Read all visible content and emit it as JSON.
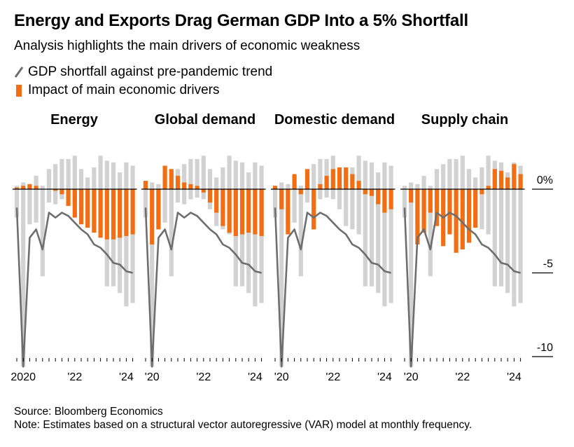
{
  "title": "Energy and Exports Drag German GDP Into a 5% Shortfall",
  "subtitle": "Analysis highlights the main drivers of economic weakness",
  "legend": {
    "line_label": "GDP shortfall against pre-pandemic trend",
    "bar_label": "Impact of main economic drivers"
  },
  "source": "Source: Bloomberg Economics",
  "note": "Note: Estimates based on a structural vector autoregressive (VAR) model at monthly frequency.",
  "colors": {
    "driver": "#f36e12",
    "range": "#d2d2d2",
    "line": "#6e6e6e",
    "axis": "#000000"
  },
  "chart_data": {
    "type": "bar",
    "ylim": [
      -10,
      2
    ],
    "y_ticks": [
      {
        "value": 0,
        "label": "0%"
      },
      {
        "value": -5,
        "label": "-5"
      },
      {
        "value": -10,
        "label": "-10"
      }
    ],
    "x_ticks": [
      {
        "panel": 0,
        "index": 1,
        "label": "2020"
      },
      {
        "panel": 0,
        "index": 9,
        "label": "'22"
      },
      {
        "panel": 0,
        "index": 17,
        "label": "'24"
      },
      {
        "panel": 1,
        "index": 1,
        "label": "'20"
      },
      {
        "panel": 1,
        "index": 9,
        "label": "'22"
      },
      {
        "panel": 1,
        "index": 17,
        "label": "'24"
      },
      {
        "panel": 2,
        "index": 1,
        "label": "'20"
      },
      {
        "panel": 2,
        "index": 9,
        "label": "'22"
      },
      {
        "panel": 2,
        "index": 17,
        "label": "'24"
      },
      {
        "panel": 3,
        "index": 1,
        "label": "'20"
      },
      {
        "panel": 3,
        "index": 9,
        "label": "'22"
      },
      {
        "panel": 3,
        "index": 17,
        "label": "'24"
      }
    ],
    "gdp_shortfall": [
      -1.1,
      -10.6,
      -2.9,
      -2.4,
      -3.6,
      -1.4,
      -1.7,
      -1.4,
      -1.6,
      -2.0,
      -2.4,
      -2.7,
      -3.3,
      -3.5,
      -3.9,
      -4.4,
      -4.5,
      -4.9,
      -5.0
    ],
    "range_bars": {
      "low": [
        -1.7,
        -10.6,
        -2.1,
        -2.0,
        -5.2,
        -0.8,
        -0.9,
        -0.6,
        -0.5,
        -0.6,
        -1.2,
        -2.2,
        -2.4,
        -2.7,
        -5.8,
        -5.8,
        -6.2,
        -7.0,
        -6.8
      ],
      "high": [
        0.2,
        0.4,
        0.3,
        0.8,
        0.2,
        1.2,
        1.5,
        1.8,
        1.8,
        2.0,
        1.2,
        0.7,
        1.3,
        2.0,
        1.7,
        1.6,
        1.0,
        1.6,
        1.4
      ]
    },
    "panels": [
      {
        "title": "Energy",
        "values": [
          0.1,
          0.2,
          0.3,
          0.2,
          0.0,
          0.0,
          -0.1,
          -0.3,
          -1.0,
          -1.7,
          -2.1,
          -2.3,
          -2.6,
          -2.9,
          -3.0,
          -3.0,
          -2.9,
          -2.8,
          -2.7
        ]
      },
      {
        "title": "Global demand",
        "values": [
          0.5,
          -3.3,
          -2.4,
          1.4,
          1.2,
          0.8,
          0.4,
          0.3,
          0.2,
          -0.2,
          -0.8,
          -1.4,
          -2.2,
          -2.6,
          -2.8,
          -2.7,
          -2.6,
          -2.7,
          -2.8
        ]
      },
      {
        "title": "Domestic demand",
        "values": [
          0.2,
          -1.2,
          -2.7,
          0.9,
          -0.3,
          1.2,
          -2.4,
          0.3,
          0.8,
          1.2,
          1.3,
          1.3,
          0.9,
          0.5,
          -0.3,
          -0.4,
          -0.9,
          -1.4,
          -1.2
        ]
      },
      {
        "title": "Supply chain",
        "values": [
          0.0,
          -0.8,
          -3.3,
          -2.6,
          -1.4,
          -2.2,
          -3.4,
          -2.7,
          -3.8,
          -3.6,
          -3.2,
          -2.3,
          -0.3,
          0.2,
          1.2,
          1.1,
          0.7,
          1.5,
          0.9
        ]
      }
    ]
  }
}
